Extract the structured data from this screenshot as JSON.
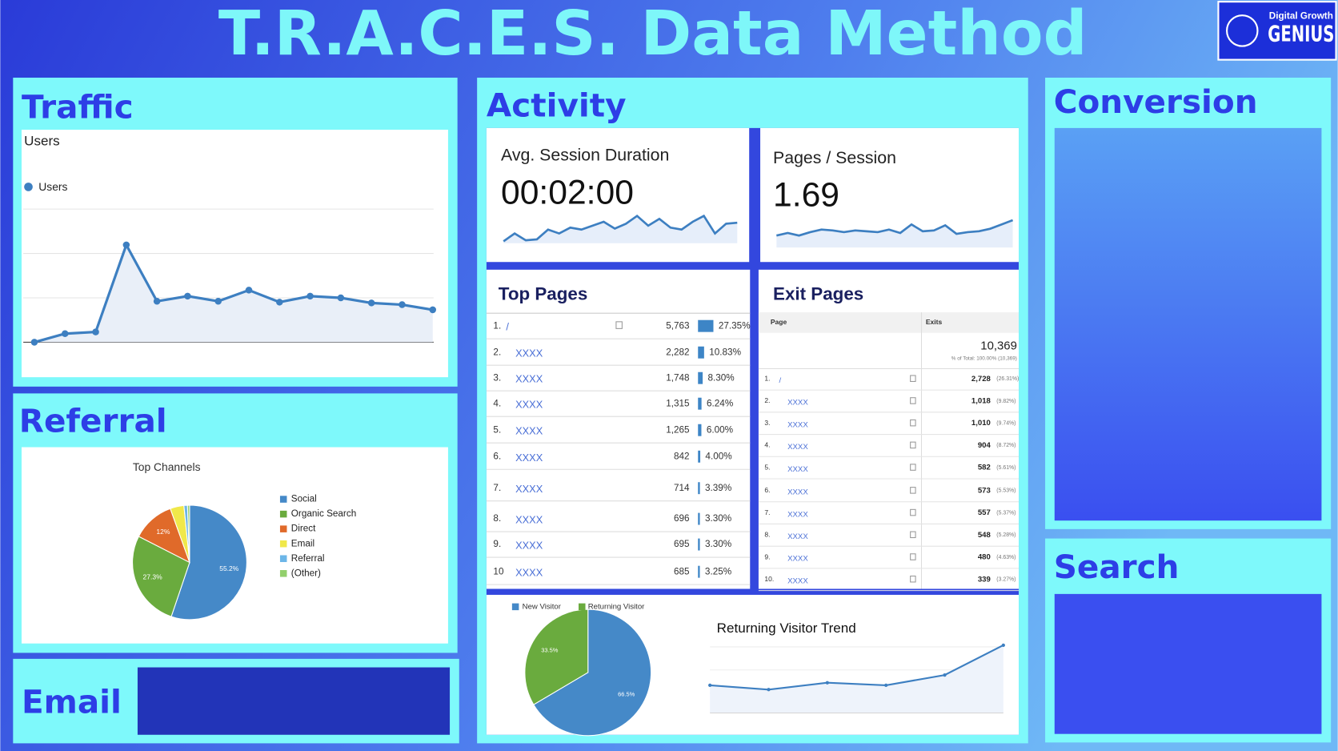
{
  "title": "T.R.A.C.E.S. Data Method",
  "logo": {
    "line1": "Digital Growth",
    "line2": "GENIUS"
  },
  "traffic": {
    "heading": "Traffic",
    "chart_data": {
      "type": "line",
      "title": "Users",
      "series": [
        {
          "name": "Users",
          "color": "#3d7fc1",
          "values": [
            0,
            10,
            12,
            114,
            48,
            54,
            48,
            61,
            47,
            54,
            52,
            46,
            44,
            38
          ]
        }
      ]
    }
  },
  "referral": {
    "heading": "Referral",
    "chart_data": {
      "type": "pie",
      "title": "Top Channels",
      "categories": [
        "Social",
        "Organic Search",
        "Direct",
        "Email",
        "Referral",
        "(Other)"
      ],
      "values": [
        55.2,
        27.3,
        12,
        3.9,
        1,
        0.6
      ],
      "value_labels": [
        "55.2%",
        "27.3%",
        "12%",
        null,
        null,
        null
      ],
      "colors": [
        "#4589c8",
        "#6aab3e",
        "#e06a2a",
        "#f0e84a",
        "#6cb6e8",
        "#92cf6c"
      ]
    }
  },
  "email": {
    "heading": "Email"
  },
  "activity": {
    "heading": "Activity",
    "cards": [
      {
        "label": "Avg. Session Duration",
        "value": "00:02:00",
        "chart_data": {
          "type": "line",
          "values": [
            2,
            10,
            3,
            4,
            14,
            10,
            16,
            14,
            18,
            22,
            15,
            20,
            28,
            18,
            25,
            16,
            14,
            22,
            28,
            10,
            20,
            21
          ]
        }
      },
      {
        "label": "Pages / Session",
        "value": 1.69,
        "chart_data": {
          "type": "line",
          "values": [
            14,
            17,
            14,
            18,
            21,
            20,
            18,
            20,
            19,
            18,
            21,
            17,
            27,
            19,
            20,
            26,
            16,
            18,
            19,
            22,
            27,
            32
          ]
        }
      }
    ],
    "top_pages": {
      "heading": "Top Pages",
      "ranks": [
        "1.",
        "2.",
        "3.",
        "4.",
        "5.",
        "6.",
        "7.",
        "8.",
        "9.",
        "10"
      ],
      "pages": [
        "/",
        "XXXX",
        "XXXX",
        "XXXX",
        "XXXX",
        "XXXX",
        "XXXX",
        "XXXX",
        "XXXX",
        "XXXX"
      ],
      "sessions": [
        "5,763",
        "2,282",
        "1,748",
        "1,315",
        "1,265",
        "842",
        "714",
        "696",
        "695",
        "685"
      ],
      "shares": [
        27.35,
        10.83,
        8.3,
        6.24,
        6,
        4,
        3.39,
        3.3,
        3.3,
        3.25
      ],
      "share_labels": [
        "27.35%",
        "10.83%",
        "8.30%",
        "6.24%",
        "6.00%",
        "4.00%",
        "3.39%",
        "3.30%",
        "3.30%",
        "3.25%"
      ]
    },
    "exit_pages": {
      "heading": "Exit Pages",
      "columns": [
        "Page",
        "Exits"
      ],
      "total": "10,369",
      "total_note": "% of Total: 100.00% (10,369)",
      "ranks": [
        "1.",
        "2.",
        "3.",
        "4.",
        "5.",
        "6.",
        "7.",
        "8.",
        "9.",
        "10."
      ],
      "pages": [
        "/",
        "XXXX",
        "XXXX",
        "XXXX",
        "XXXX",
        "XXXX",
        "XXXX",
        "XXXX",
        "XXXX",
        "XXXX"
      ],
      "exits": [
        "2,728",
        "1,018",
        "1,010",
        "904",
        "582",
        "573",
        "557",
        "548",
        "480",
        "339"
      ],
      "shares": [
        "(26.31%)",
        "(9.82%)",
        "(9.74%)",
        "(8.72%)",
        "(5.61%)",
        "(5.53%)",
        "(5.37%)",
        "(5.28%)",
        "(4.63%)",
        "(3.27%)"
      ]
    },
    "visitors": {
      "chart_data": {
        "type": "pie",
        "categories": [
          "New Visitor",
          "Returning Visitor"
        ],
        "values": [
          66.5,
          33.5
        ],
        "value_labels": [
          "66.5%",
          "33.5%"
        ],
        "colors": [
          "#4589c8",
          "#6aab3e"
        ]
      }
    },
    "trend": {
      "chart_data": {
        "type": "line",
        "title": "Returning Visitor Trend",
        "values": [
          32,
          27,
          35,
          32,
          44,
          79
        ]
      }
    }
  },
  "conversion": {
    "heading": "Conversion"
  },
  "search": {
    "heading": "Search"
  }
}
